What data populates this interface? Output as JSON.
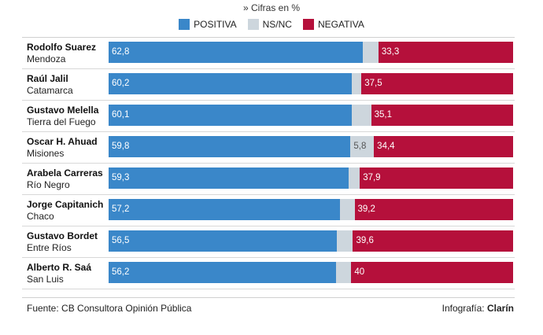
{
  "subtitle": "» Cifras en %",
  "legend": [
    {
      "label": "POSITIVA",
      "color": "#3a87c9"
    },
    {
      "label": "NS/NC",
      "color": "#cdd6dd"
    },
    {
      "label": "NEGATIVA",
      "color": "#b5103b"
    }
  ],
  "chart_data": {
    "type": "bar",
    "stacked": true,
    "orientation": "horizontal",
    "title": "",
    "xlim": [
      0,
      100
    ],
    "grid": false,
    "legend_position": "top",
    "categories": [
      {
        "name": "Rodolfo Suarez",
        "province": "Mendoza"
      },
      {
        "name": "Raúl Jalil",
        "province": "Catamarca"
      },
      {
        "name": "Gustavo Melella",
        "province": "Tierra del Fuego"
      },
      {
        "name": "Oscar H. Ahuad",
        "province": "Misiones"
      },
      {
        "name": "Arabela Carreras",
        "province": "Río Negro"
      },
      {
        "name": "Jorge Capitanich",
        "province": "Chaco"
      },
      {
        "name": "Gustavo Bordet",
        "province": "Entre Ríos"
      },
      {
        "name": "Alberto R. Saá",
        "province": "San Luis"
      }
    ],
    "series": [
      {
        "name": "POSITIVA",
        "color": "#3a87c9",
        "values": [
          62.8,
          60.2,
          60.1,
          59.8,
          59.3,
          57.2,
          56.5,
          56.2
        ],
        "labels": [
          "62,8",
          "60,2",
          "60,1",
          "59,8",
          "59,3",
          "57,2",
          "56,5",
          "56,2"
        ]
      },
      {
        "name": "NS/NC",
        "color": "#cdd6dd",
        "values": [
          3.9,
          2.3,
          4.8,
          5.8,
          2.8,
          3.6,
          3.9,
          3.8
        ],
        "labels": [
          "",
          "",
          "",
          "5,8",
          "",
          "",
          "",
          ""
        ]
      },
      {
        "name": "NEGATIVA",
        "color": "#b5103b",
        "values": [
          33.3,
          37.5,
          35.1,
          34.4,
          37.9,
          39.2,
          39.6,
          40
        ],
        "labels": [
          "33,3",
          "37,5",
          "35,1",
          "34,4",
          "37,9",
          "39,2",
          "39,6",
          "40"
        ]
      }
    ]
  },
  "footer": {
    "source": "Fuente: CB Consultora Opinión Pública",
    "credit_prefix": "Infografía: ",
    "credit_brand": "Clarín"
  }
}
